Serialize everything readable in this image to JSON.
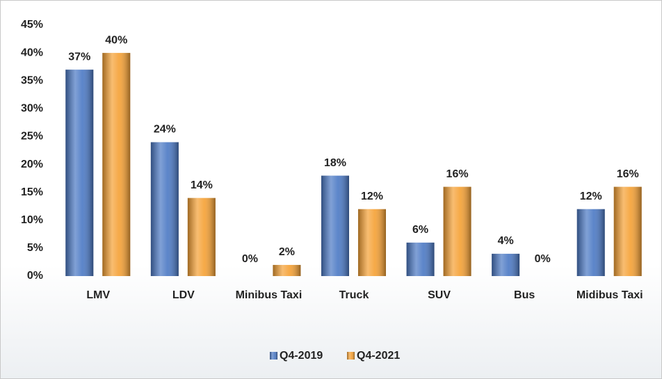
{
  "chart_data": {
    "type": "bar",
    "categories": [
      "LMV",
      "LDV",
      "Minibus Taxi",
      "Truck",
      "SUV",
      "Bus",
      "Midibus Taxi"
    ],
    "series": [
      {
        "name": "Q4-2019",
        "color": "#4a78c4",
        "values": [
          37,
          24,
          0,
          18,
          6,
          4,
          12
        ],
        "value_labels": [
          "37%",
          "24%",
          "0%",
          "18%",
          "6%",
          "4%",
          "12%"
        ]
      },
      {
        "name": "Q4-2021",
        "color": "#f5a033",
        "values": [
          40,
          14,
          2,
          12,
          16,
          0,
          16
        ],
        "value_labels": [
          "40%",
          "14%",
          "2%",
          "12%",
          "16%",
          "0%",
          "16%"
        ]
      }
    ],
    "ylim": [
      0,
      45
    ],
    "yticks": [
      {
        "value": 0,
        "label": "0%"
      },
      {
        "value": 5,
        "label": "5%"
      },
      {
        "value": 10,
        "label": "10%"
      },
      {
        "value": 15,
        "label": "15%"
      },
      {
        "value": 20,
        "label": "20%"
      },
      {
        "value": 25,
        "label": "25%"
      },
      {
        "value": 30,
        "label": "30%"
      },
      {
        "value": 35,
        "label": "35%"
      },
      {
        "value": 40,
        "label": "40%"
      },
      {
        "value": 45,
        "label": "45%"
      }
    ],
    "grid": false,
    "legend": "bottom"
  }
}
